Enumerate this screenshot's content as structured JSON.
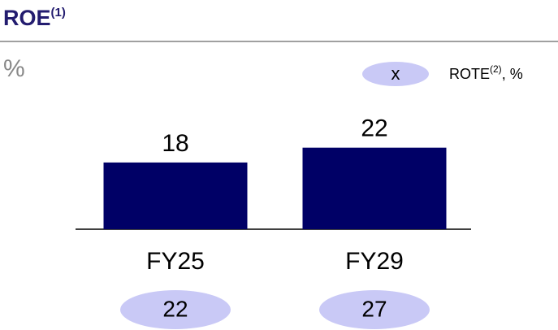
{
  "chart_data": {
    "type": "bar",
    "title": "ROE",
    "title_note": "(1)",
    "unit": "%",
    "categories": [
      "FY25",
      "FY29"
    ],
    "values": [
      18,
      22
    ],
    "color": "#000066",
    "ylim": [
      0,
      25
    ],
    "rote": {
      "marker": "x",
      "name": "ROTE",
      "note": "(2)",
      "unit": ", %",
      "color": "#c9c9f6",
      "values": [
        22,
        27
      ]
    }
  }
}
